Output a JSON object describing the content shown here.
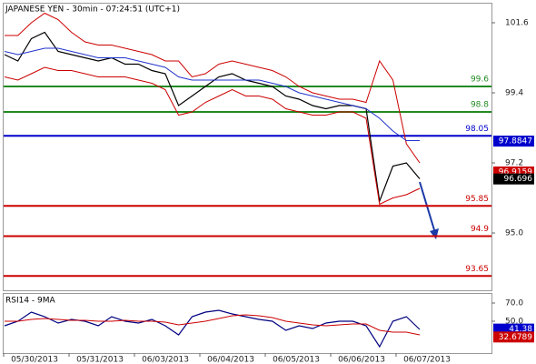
{
  "chart_data": [
    {
      "type": "line",
      "title": "JAPANESE YEN - 30min - 07:24:51 (UTC+1)",
      "ylim": [
        93.23,
        101.8
      ],
      "yticks": [
        101.6,
        99.4,
        97.2,
        {
          "value": 95,
          "label": "95.0"
        }
      ],
      "series": [
        {
          "color": "#000000",
          "values": [
            100.6,
            100.4,
            101.1,
            101.3,
            100.7,
            100.6,
            100.5,
            100.4,
            100.5,
            100.3,
            100.3,
            100.1,
            100.0,
            99.0,
            99.3,
            99.6,
            99.9,
            100.0,
            99.8,
            99.7,
            99.6,
            99.3,
            99.2,
            99.0,
            98.9,
            99.0,
            99.0,
            98.9,
            96.0,
            97.1,
            97.2,
            96.7
          ]
        },
        {
          "color": "#cc0000",
          "values": [
            101.2,
            101.2,
            101.6,
            101.9,
            101.7,
            101.3,
            101.0,
            100.9,
            100.9,
            100.8,
            100.7,
            100.6,
            100.4,
            100.4,
            99.9,
            100.0,
            100.3,
            100.4,
            100.3,
            100.2,
            100.1,
            99.9,
            99.6,
            99.4,
            99.3,
            99.2,
            99.2,
            99.1,
            100.4,
            99.8,
            97.8,
            97.2
          ]
        },
        {
          "color": "#cc0000",
          "values": [
            99.9,
            99.8,
            100.0,
            100.2,
            100.1,
            100.1,
            100.0,
            99.9,
            99.9,
            99.9,
            99.8,
            99.7,
            99.5,
            98.7,
            98.8,
            99.1,
            99.3,
            99.5,
            99.3,
            99.3,
            99.2,
            98.9,
            98.8,
            98.7,
            98.7,
            98.8,
            98.8,
            98.6,
            95.9,
            96.1,
            96.2,
            96.4
          ]
        },
        {
          "color": "#2233cc",
          "values": [
            100.7,
            100.6,
            100.7,
            100.8,
            100.8,
            100.7,
            100.6,
            100.5,
            100.5,
            100.5,
            100.4,
            100.3,
            100.2,
            99.9,
            99.8,
            99.8,
            99.8,
            99.8,
            99.8,
            99.8,
            99.7,
            99.6,
            99.4,
            99.3,
            99.2,
            99.1,
            99.0,
            98.9,
            98.6,
            98.2,
            97.9,
            97.9
          ]
        }
      ],
      "levels": [
        {
          "value": 99.6,
          "color": "#228b22"
        },
        {
          "value": 98.8,
          "color": "#228b22"
        },
        {
          "value": 98.05,
          "color": "#0000cc"
        },
        {
          "value": 95.85,
          "color": "#cc0000"
        },
        {
          "value": 94.9,
          "color": "#cc0000"
        },
        {
          "value": 93.65,
          "color": "#cc0000"
        }
      ],
      "price_labels": [
        {
          "value": 97.8847,
          "color": "#0000cc"
        },
        {
          "value": 96.9159,
          "color": "#cc0000"
        },
        {
          "value": 96.696,
          "color": "#000000"
        }
      ]
    },
    {
      "type": "line",
      "title": "RSI14 - 9MA",
      "ylim": [
        15,
        80
      ],
      "yticks": [
        {
          "value": 70,
          "label": "70.0"
        },
        {
          "value": 50,
          "label": "50.0"
        }
      ],
      "series": [
        {
          "color": "#000080",
          "values": [
            45,
            50,
            60,
            55,
            48,
            52,
            50,
            45,
            55,
            50,
            48,
            52,
            45,
            35,
            55,
            60,
            62,
            58,
            55,
            52,
            50,
            40,
            45,
            42,
            48,
            50,
            50,
            45,
            22,
            50,
            55,
            41
          ]
        },
        {
          "color": "#cc0000",
          "values": [
            50,
            50,
            52,
            53,
            52,
            51,
            51,
            50,
            50,
            51,
            50,
            50,
            49,
            46,
            48,
            50,
            53,
            56,
            57,
            56,
            54,
            50,
            48,
            46,
            45,
            46,
            47,
            47,
            40,
            38,
            38,
            35
          ]
        }
      ],
      "price_labels": [
        {
          "value": 41.38,
          "color": "#0000cc"
        },
        {
          "value": 32.6789,
          "color": "#cc0000"
        }
      ],
      "date_labels": [
        "05/30/2013",
        "05/31/2013",
        "06/03/2013",
        "06/04/2013",
        "06/05/2013",
        "06/06/2013",
        "06/07/2013"
      ]
    }
  ]
}
